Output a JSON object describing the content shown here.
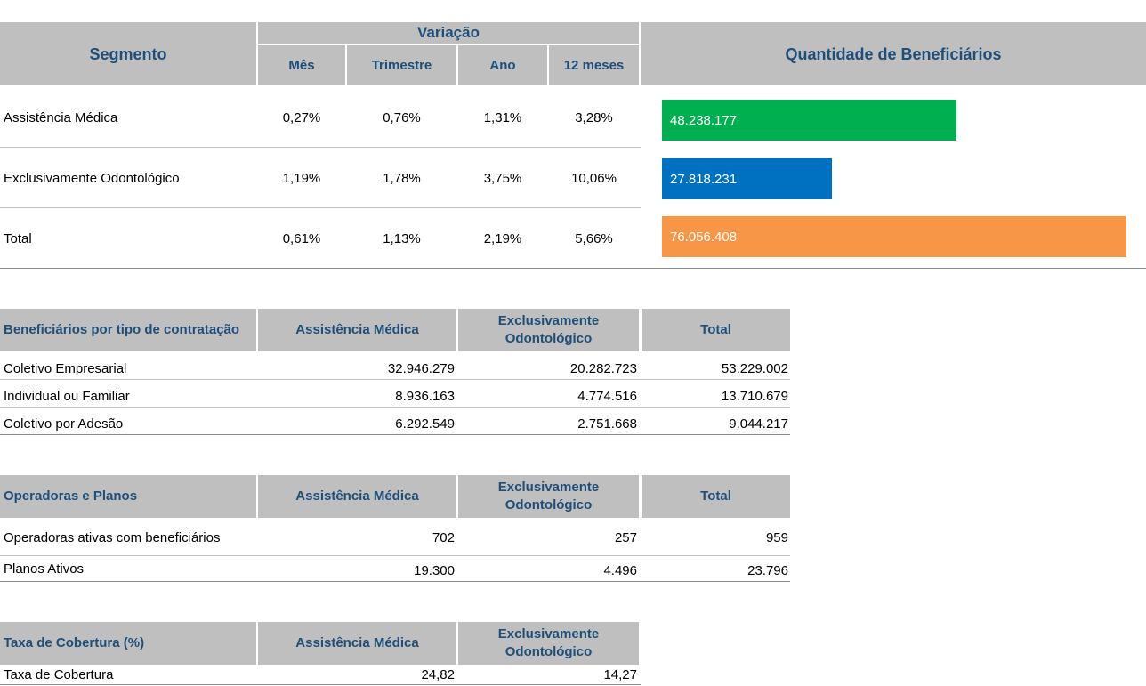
{
  "top": {
    "segment_header": "Segmento",
    "variation_header": "Variação",
    "sub_headers": [
      "Mês",
      "Trimestre",
      "Ano",
      "12 meses"
    ],
    "quantity_header": "Quantidade de Beneficiários",
    "rows": [
      {
        "segment": "Assistência Médica",
        "values": [
          "0,27%",
          "0,76%",
          "1,31%",
          "3,28%"
        ],
        "quantity": "48.238.177",
        "quantity_value": 48238177,
        "color": "#00b050"
      },
      {
        "segment": "Exclusivamente Odontológico",
        "values": [
          "1,19%",
          "1,78%",
          "3,75%",
          "10,06%"
        ],
        "quantity": "27.818.231",
        "quantity_value": 27818231,
        "color": "#0070c0"
      },
      {
        "segment": "Total",
        "values": [
          "0,61%",
          "1,13%",
          "2,19%",
          "5,66%"
        ],
        "quantity": "76.056.408",
        "quantity_value": 76056408,
        "color": "#f79646"
      }
    ]
  },
  "contratacao": {
    "headers": [
      "Beneficiários por tipo de contratação",
      "Assistência Médica",
      "Exclusivamente Odontológico",
      "Total"
    ],
    "rows": [
      [
        "Coletivo Empresarial",
        "32.946.279",
        "20.282.723",
        "53.229.002"
      ],
      [
        "Individual ou Familiar",
        "8.936.163",
        "4.774.516",
        "13.710.679"
      ],
      [
        "Coletivo por Adesão",
        "6.292.549",
        "2.751.668",
        "9.044.217"
      ]
    ]
  },
  "operadoras": {
    "headers": [
      "Operadoras e Planos",
      "Assistência Médica",
      "Exclusivamente Odontológico",
      "Total"
    ],
    "rows": [
      [
        "Operadoras ativas com beneficiários",
        "702",
        "257",
        "959"
      ],
      [
        "Planos Ativos",
        "19.300",
        "4.496",
        "23.796"
      ]
    ]
  },
  "cobertura": {
    "headers": [
      "Taxa de Cobertura (%)",
      "Assistência Médica",
      "Exclusivamente Odontológico"
    ],
    "rows": [
      [
        "Taxa de Cobertura",
        "24,82",
        "14,27"
      ]
    ]
  }
}
